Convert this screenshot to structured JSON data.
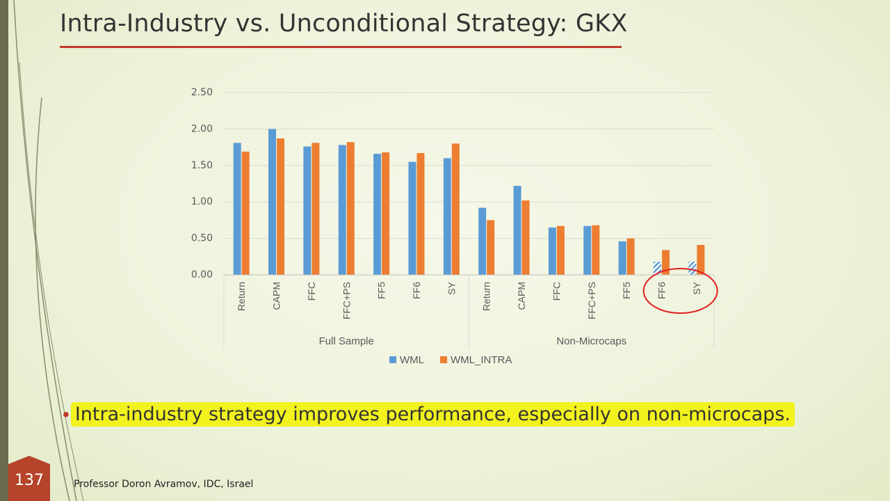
{
  "slide": {
    "title": "Intra-Industry vs. Unconditional Strategy: GKX",
    "bullet": "Intra-industry strategy improves performance, especially on non-microcaps.",
    "page_number": "137",
    "footer": "Professor Doron Avramov, IDC, Israel"
  },
  "colors": {
    "wml": "#5b9bd5",
    "wml_intra": "#ed7d31",
    "accent": "#c2382a",
    "highlight": "#f2f21e"
  },
  "chart_data": {
    "type": "bar",
    "groups": [
      {
        "name": "Full Sample",
        "categories": [
          "Return",
          "CAPM",
          "FFC",
          "FFC+PS",
          "FF5",
          "FF6",
          "SY"
        ]
      },
      {
        "name": "Non-Microcaps",
        "categories": [
          "Return",
          "CAPM",
          "FFC",
          "FFC+PS",
          "FF5",
          "FF6",
          "SY"
        ]
      }
    ],
    "series": [
      {
        "name": "WML",
        "values": [
          1.81,
          2.0,
          1.76,
          1.78,
          1.66,
          1.55,
          1.6,
          0.92,
          1.22,
          0.65,
          0.67,
          0.46,
          0.18,
          0.18
        ],
        "hatched": [
          false,
          false,
          false,
          false,
          false,
          false,
          false,
          false,
          false,
          false,
          false,
          false,
          true,
          true
        ]
      },
      {
        "name": "WML_INTRA",
        "values": [
          1.69,
          1.87,
          1.81,
          1.82,
          1.68,
          1.67,
          1.8,
          0.75,
          1.02,
          0.67,
          0.68,
          0.5,
          0.34,
          0.41
        ]
      }
    ],
    "yticks": [
      "0.00",
      "0.50",
      "1.00",
      "1.50",
      "2.00",
      "2.50"
    ],
    "ylim": [
      0,
      2.5
    ],
    "grid": true,
    "legend_position": "bottom",
    "annotation": "circled FF6 and SY (Non-Microcaps)"
  }
}
